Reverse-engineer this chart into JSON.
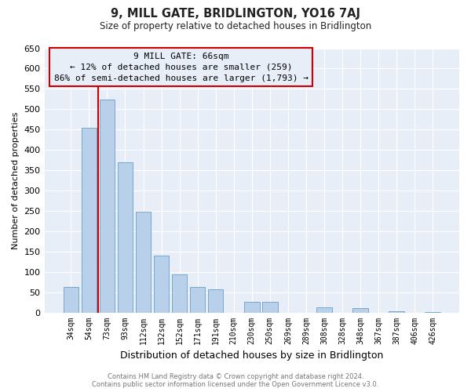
{
  "title": "9, MILL GATE, BRIDLINGTON, YO16 7AJ",
  "subtitle": "Size of property relative to detached houses in Bridlington",
  "xlabel": "Distribution of detached houses by size in Bridlington",
  "ylabel": "Number of detached properties",
  "bin_labels": [
    "34sqm",
    "54sqm",
    "73sqm",
    "93sqm",
    "112sqm",
    "132sqm",
    "152sqm",
    "171sqm",
    "191sqm",
    "210sqm",
    "230sqm",
    "250sqm",
    "269sqm",
    "289sqm",
    "308sqm",
    "328sqm",
    "348sqm",
    "367sqm",
    "387sqm",
    "406sqm",
    "426sqm"
  ],
  "bar_values": [
    63,
    455,
    523,
    370,
    248,
    140,
    93,
    62,
    57,
    0,
    27,
    27,
    0,
    0,
    12,
    0,
    10,
    0,
    3,
    0,
    2
  ],
  "bar_color": "#b8d0ea",
  "bar_edge_color": "#6a9fc8",
  "ylim": [
    0,
    650
  ],
  "yticks": [
    0,
    50,
    100,
    150,
    200,
    250,
    300,
    350,
    400,
    450,
    500,
    550,
    600,
    650
  ],
  "property_line_color": "#cc0000",
  "annotation_text": "9 MILL GATE: 66sqm\n← 12% of detached houses are smaller (259)\n86% of semi-detached houses are larger (1,793) →",
  "annotation_box_color": "#cc0000",
  "footer_line1": "Contains HM Land Registry data © Crown copyright and database right 2024.",
  "footer_line2": "Contains public sector information licensed under the Open Government Licence v3.0.",
  "plot_bg_color": "#e8eef8",
  "fig_bg_color": "#ffffff",
  "grid_color": "#ffffff"
}
